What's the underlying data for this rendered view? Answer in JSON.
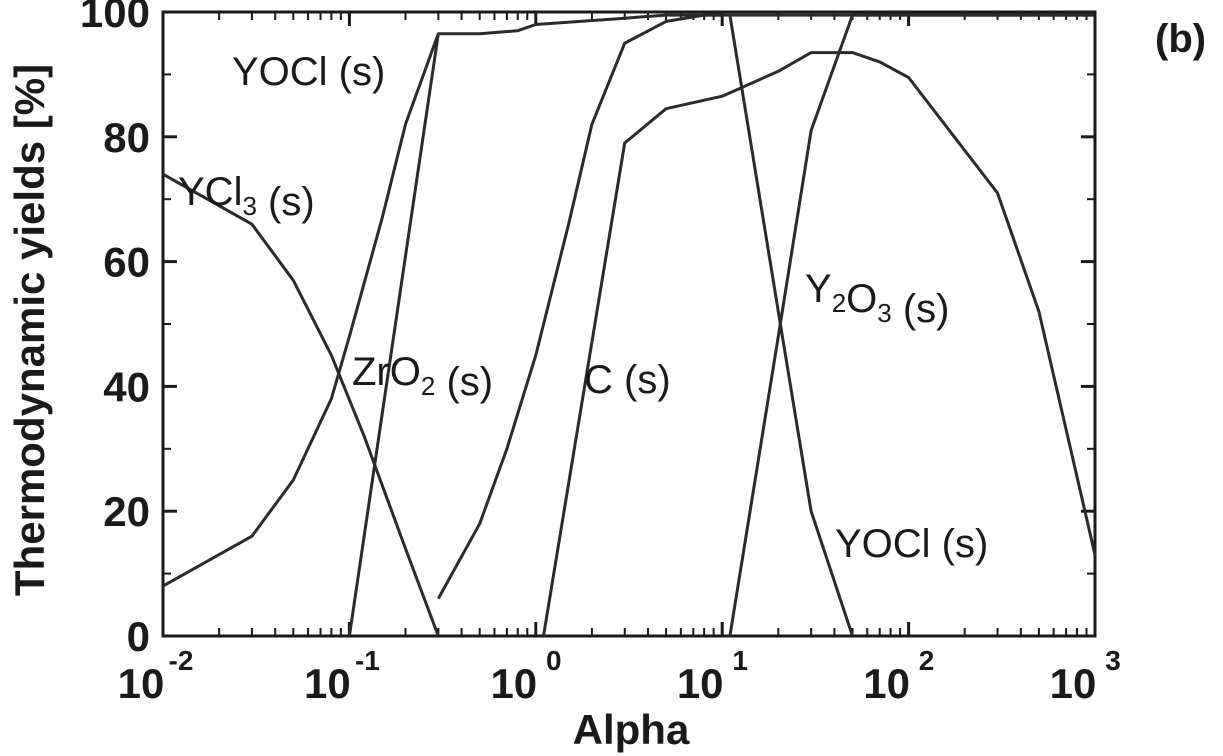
{
  "panel_tag": "(b)",
  "chart_data": {
    "type": "line",
    "xlabel": "Alpha",
    "ylabel": "Thermodynamic yields [%]",
    "xscale": "log",
    "xlim": [
      0.01,
      1000
    ],
    "ylim": [
      0,
      100
    ],
    "grid": false,
    "x_ticks": [
      {
        "base": "10",
        "exp": "-2"
      },
      {
        "base": "10",
        "exp": "-1"
      },
      {
        "base": "10",
        "exp": "0"
      },
      {
        "base": "10",
        "exp": "1"
      },
      {
        "base": "10",
        "exp": "2"
      },
      {
        "base": "10",
        "exp": "3"
      }
    ],
    "y_ticks": [
      "0",
      "20",
      "40",
      "60",
      "80",
      "100"
    ],
    "series": [
      {
        "name": "YCl3 (s)",
        "label_main": "YCl",
        "label_sub": "3",
        "label_tail": " (s)",
        "x": [
          0.01,
          0.03,
          0.05,
          0.08,
          0.12,
          0.2,
          0.3
        ],
        "y": [
          74,
          66,
          57,
          45,
          32,
          14,
          0
        ]
      },
      {
        "name": "YOCl (s)",
        "label_main": "YOCl (s)",
        "label_sub": "",
        "label_tail": "",
        "x": [
          0.1,
          0.3,
          0.5,
          0.8,
          1,
          3,
          5,
          10,
          30,
          50,
          100,
          1000
        ],
        "y": [
          0,
          96.5,
          96.5,
          97,
          98,
          99,
          99.5,
          99.5,
          99.5,
          99.5,
          99.5,
          99.5
        ]
      },
      {
        "name": "ZrO2 (s)",
        "label_main": "ZrO",
        "label_sub": "2",
        "label_tail": " (s)",
        "x": [
          0.01,
          0.03,
          0.05,
          0.08,
          0.1,
          0.15,
          0.2,
          0.3
        ],
        "y": [
          8,
          16,
          25,
          38,
          48,
          67,
          82,
          96.5
        ]
      },
      {
        "name": "C (s)",
        "label_main": "C (s)",
        "label_sub": "",
        "label_tail": "",
        "x": [
          0.3,
          0.5,
          0.7,
          1,
          1.5,
          2,
          3,
          5,
          8,
          10
        ],
        "y": [
          6,
          18,
          30,
          45,
          66,
          82,
          95,
          98.5,
          99.5,
          99.5
        ]
      },
      {
        "name": "Y2O3 (s)",
        "label_main": "Y",
        "label_sub": "2",
        "label_tail": "O",
        "label_sub2": "3",
        "label_tail2": " (s)",
        "x": [
          1.1,
          3,
          5,
          10,
          20,
          30,
          50,
          70,
          100,
          300,
          500,
          1000
        ],
        "y": [
          0,
          79,
          84.5,
          86.5,
          90.5,
          93.5,
          93.5,
          92,
          89.5,
          71,
          52,
          13
        ]
      },
      {
        "name": "YOCl (s)",
        "label_main": "YOCl (s)",
        "label_sub": "",
        "label_tail": "",
        "x": [
          11,
          20,
          30,
          50
        ],
        "y": [
          99.5,
          52,
          20,
          0
        ]
      },
      {
        "name": "",
        "label_main": "",
        "label_sub": "",
        "label_tail": "",
        "x": [
          11,
          20,
          30,
          50,
          70,
          100,
          1000
        ],
        "y": [
          0,
          48,
          81,
          99.5,
          99.5,
          99.5,
          99.5
        ]
      }
    ]
  }
}
